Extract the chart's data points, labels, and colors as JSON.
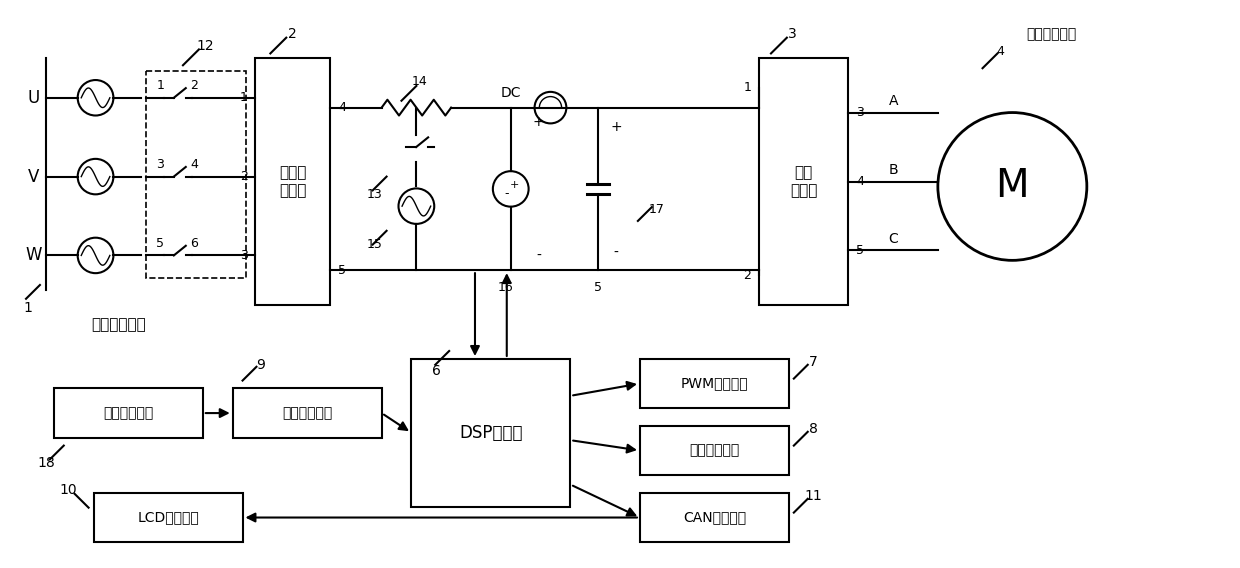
{
  "bg_color": "#ffffff",
  "lc": "#000000",
  "lw": 1.5,
  "fig_w": 12.4,
  "fig_h": 5.68,
  "labels": {
    "U": "U",
    "V": "V",
    "W": "W",
    "source": "三相交流电源",
    "diode": "二极管\n整流桥",
    "inverter": "三相\n逆变桥",
    "pmsm": "永磁同步电机",
    "dsp": "DSP控制板",
    "pwm": "PWM驱动模块",
    "detect": "检测保护电路",
    "can": "CAN通讯单元",
    "lcd": "LCD显示存储",
    "dc_power": "直流供电电源",
    "dc_red": "直流兔余模块",
    "DC": "DC",
    "M": "M",
    "A": "A",
    "B": "B",
    "C": "C"
  }
}
